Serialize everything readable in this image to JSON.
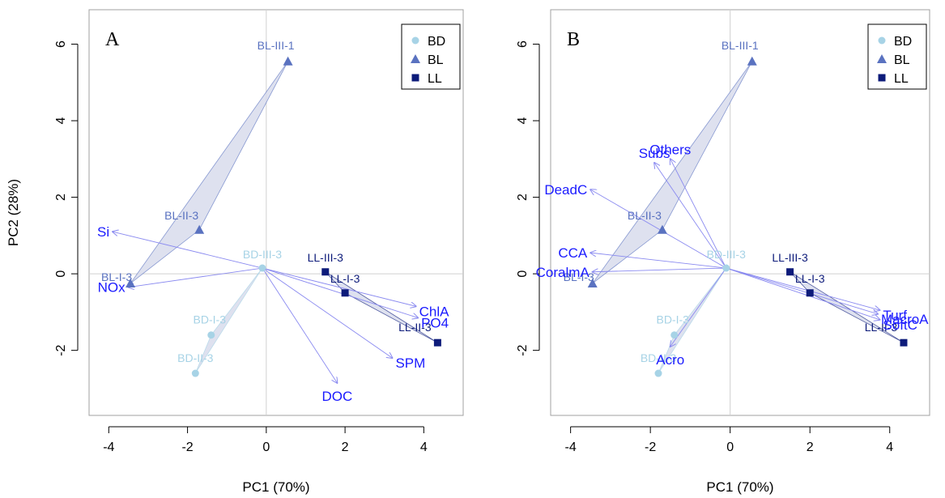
{
  "colors": {
    "BD": "#a7d3e6",
    "BL": "#5a72c0",
    "LL": "#0d1b7a",
    "vector": "#1a1aff",
    "arrow": "#8a8af0",
    "hull_fill": "#d8dcec"
  },
  "legend": [
    {
      "label": "BD",
      "marker": "circle"
    },
    {
      "label": "BL",
      "marker": "triangle"
    },
    {
      "label": "LL",
      "marker": "square"
    }
  ],
  "chart_data": [
    {
      "type": "scatter",
      "panel_label": "A",
      "xlabel": "PC1 (70%)",
      "ylabel": "PC2 (28%)",
      "xlim": [
        -4.5,
        5
      ],
      "ylim": [
        -3.7,
        6.9
      ],
      "xticks": [
        -4,
        -2,
        0,
        2,
        4
      ],
      "yticks": [
        -2,
        0,
        2,
        4,
        6
      ],
      "legend_position": "top-right",
      "points": [
        {
          "label": "BD-III-3",
          "group": "BD",
          "x": -0.1,
          "y": 0.15
        },
        {
          "label": "BD-I-3",
          "group": "BD",
          "x": -1.4,
          "y": -1.6
        },
        {
          "label": "BD-II-3",
          "group": "BD",
          "x": -1.8,
          "y": -2.6
        },
        {
          "label": "BL-III-1",
          "group": "BL",
          "x": 0.55,
          "y": 5.55
        },
        {
          "label": "BL-II-3",
          "group": "BL",
          "x": -1.7,
          "y": 1.15
        },
        {
          "label": "BL-I-3",
          "group": "BL",
          "x": -3.45,
          "y": -0.25
        },
        {
          "label": "LL-III-3",
          "group": "LL",
          "x": 1.5,
          "y": 0.05
        },
        {
          "label": "LL-I-3",
          "group": "LL",
          "x": 2.0,
          "y": -0.5
        },
        {
          "label": "LL-II-3",
          "group": "LL",
          "x": 4.35,
          "y": -1.8
        }
      ],
      "vectors": [
        {
          "label": "Si",
          "x": -3.9,
          "y": 1.1
        },
        {
          "label": "NOx",
          "x": -3.5,
          "y": -0.35
        },
        {
          "label": "ChlA",
          "x": 3.8,
          "y": -0.85
        },
        {
          "label": "PO4",
          "x": 3.85,
          "y": -1.15
        },
        {
          "label": "SPM",
          "x": 3.2,
          "y": -2.2
        },
        {
          "label": "DOC",
          "x": 1.8,
          "y": -2.85
        }
      ]
    },
    {
      "type": "scatter",
      "panel_label": "B",
      "xlabel": "PC1 (70%)",
      "ylabel": "",
      "xlim": [
        -4.5,
        5
      ],
      "ylim": [
        -3.7,
        6.9
      ],
      "xticks": [
        -4,
        -2,
        0,
        2,
        4
      ],
      "yticks": [
        -2,
        0,
        2,
        4,
        6
      ],
      "legend_position": "top-right",
      "points": [
        {
          "label": "BD-III-3",
          "group": "BD",
          "x": -0.1,
          "y": 0.15
        },
        {
          "label": "BD-I-3",
          "group": "BD",
          "x": -1.4,
          "y": -1.6
        },
        {
          "label": "BD-II-3",
          "group": "BD",
          "x": -1.8,
          "y": -2.6
        },
        {
          "label": "BL-III-1",
          "group": "BL",
          "x": 0.55,
          "y": 5.55
        },
        {
          "label": "BL-II-3",
          "group": "BL",
          "x": -1.7,
          "y": 1.15
        },
        {
          "label": "BL-I-3",
          "group": "BL",
          "x": -3.45,
          "y": -0.25
        },
        {
          "label": "LL-III-3",
          "group": "LL",
          "x": 1.5,
          "y": 0.05
        },
        {
          "label": "LL-I-3",
          "group": "LL",
          "x": 2.0,
          "y": -0.5
        },
        {
          "label": "LL-II-3",
          "group": "LL",
          "x": 4.35,
          "y": -1.8
        }
      ],
      "vectors": [
        {
          "label": "Subs",
          "x": -1.9,
          "y": 2.9
        },
        {
          "label": "Others",
          "x": -1.5,
          "y": 3.0
        },
        {
          "label": "DeadC",
          "x": -3.5,
          "y": 2.2
        },
        {
          "label": "CCA",
          "x": -3.5,
          "y": 0.55
        },
        {
          "label": "CoralmA",
          "x": -3.45,
          "y": 0.05
        },
        {
          "label": "Turf",
          "x": 3.75,
          "y": -0.95
        },
        {
          "label": "MacroA",
          "x": 3.7,
          "y": -1.05
        },
        {
          "label": "SoftC",
          "x": 3.75,
          "y": -1.2
        },
        {
          "label": "Acro",
          "x": -1.5,
          "y": -1.9
        }
      ]
    }
  ]
}
